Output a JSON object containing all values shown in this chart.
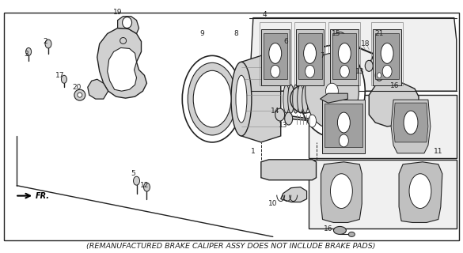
{
  "background_color": "#ffffff",
  "caption": "(REMANUFACTURED BRAKE CALIPER ASSY DOES NOT INCLUDE BRAKE PADS)",
  "caption_fontsize": 6.8,
  "fig_width": 5.85,
  "fig_height": 3.2,
  "dpi": 100,
  "line_color": "#222222",
  "gray_light": "#d0d0d0",
  "gray_mid": "#b0b0b0",
  "gray_dark": "#888888"
}
